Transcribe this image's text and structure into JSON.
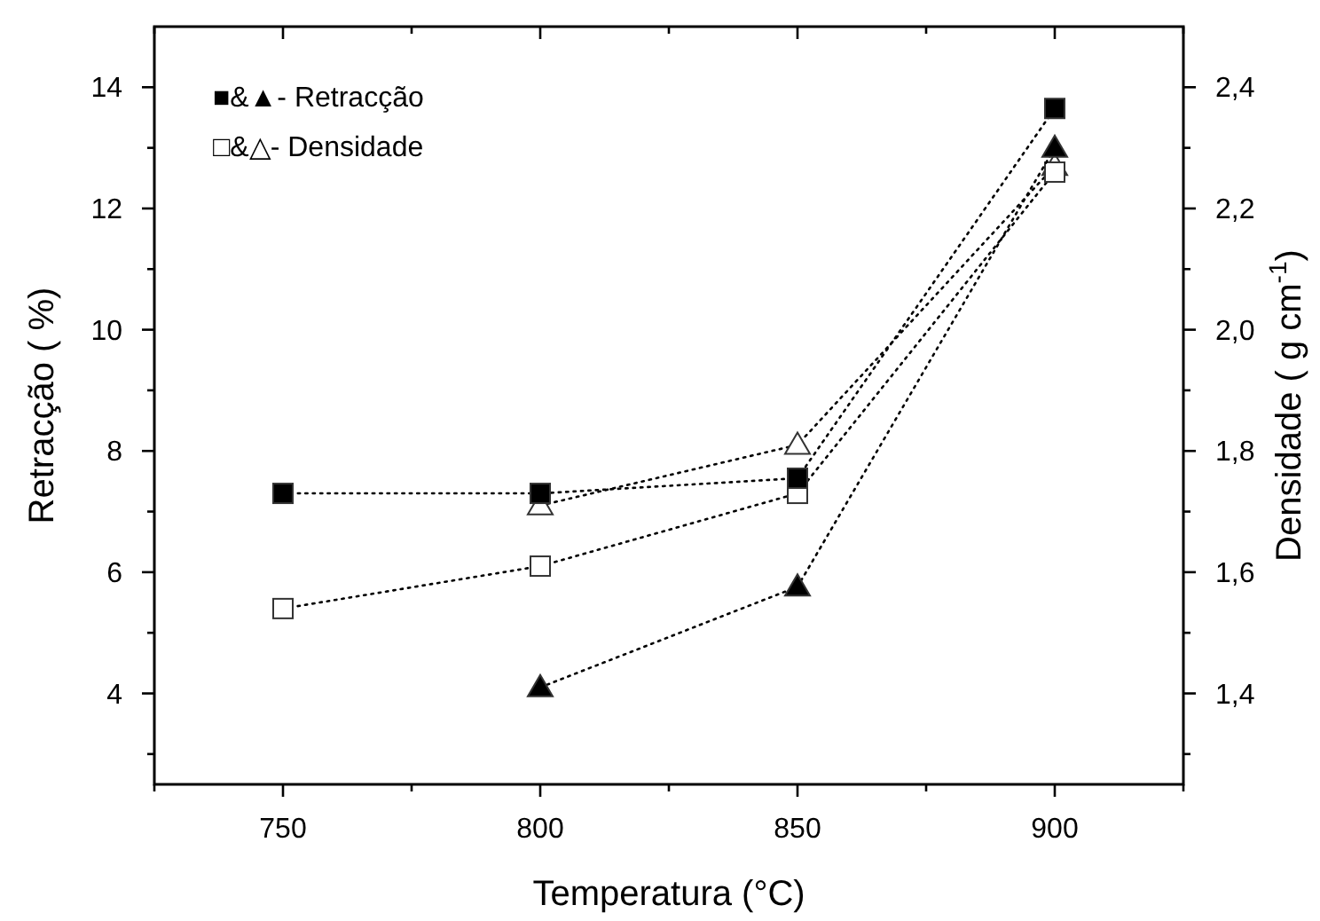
{
  "chart_data": {
    "type": "line",
    "xlabel": "Temperatura  (°C)",
    "ylabel": "Retracção  ( %)",
    "y2label": "Densidade  ( g cm$^{-1}$)",
    "xlim": [
      725,
      925
    ],
    "xticks": [
      {
        "value": 725,
        "label": null
      },
      750,
      {
        "value": 775,
        "label": null
      },
      800,
      {
        "value": 825,
        "label": null
      },
      850,
      {
        "value": 875,
        "label": null
      },
      900,
      {
        "value": 925,
        "label": null
      }
    ],
    "ylim": [
      2.5,
      15
    ],
    "yticks": [
      {
        "value": 3,
        "label": null
      },
      4,
      {
        "value": 5,
        "label": null
      },
      6,
      {
        "value": 7,
        "label": null
      },
      8,
      {
        "value": 9,
        "label": null
      },
      10,
      {
        "value": 11,
        "label": null
      },
      12,
      {
        "value": 13,
        "label": null
      },
      14
    ],
    "y2lim": [
      1.25,
      2.5
    ],
    "y2ticks": [
      {
        "value": 1.3,
        "label": null
      },
      {
        "value": 1.4,
        "label": "1,4"
      },
      {
        "value": 1.5,
        "label": null
      },
      {
        "value": 1.6,
        "label": "1,6"
      },
      {
        "value": 1.7,
        "label": null
      },
      {
        "value": 1.8,
        "label": "1,8"
      },
      {
        "value": 1.9,
        "label": null
      },
      {
        "value": 2.0,
        "label": "2,0"
      },
      {
        "value": 2.1,
        "label": null
      },
      {
        "value": 2.2,
        "label": "2,2"
      },
      {
        "value": 2.3,
        "label": null
      },
      {
        "value": 2.4,
        "label": "2,4"
      }
    ],
    "grid": false,
    "line_style": "dotted",
    "annotations": [
      "■&▲- Retracção",
      "□&△- Densidade"
    ],
    "series": [
      {
        "color": "#000000",
        "marker": "square",
        "x": [
          750,
          800,
          850,
          900
        ],
        "values": [
          7.3,
          7.3,
          7.55,
          13.65
        ]
      },
      {
        "color": "#000000",
        "marker": "triangle",
        "x": [
          800,
          850,
          900
        ],
        "values": [
          4.1,
          5.76,
          13.0
        ]
      },
      {
        "color": "#ffffff",
        "marker": "square",
        "axis": "y2",
        "x": [
          750,
          800,
          850,
          900
        ],
        "values": [
          1.54,
          1.61,
          1.73,
          2.26
        ]
      },
      {
        "color": "#ffffff",
        "marker": "triangle",
        "axis": "y2",
        "x": [
          800,
          850,
          900
        ],
        "values": [
          1.71,
          1.81,
          2.27
        ]
      }
    ]
  }
}
